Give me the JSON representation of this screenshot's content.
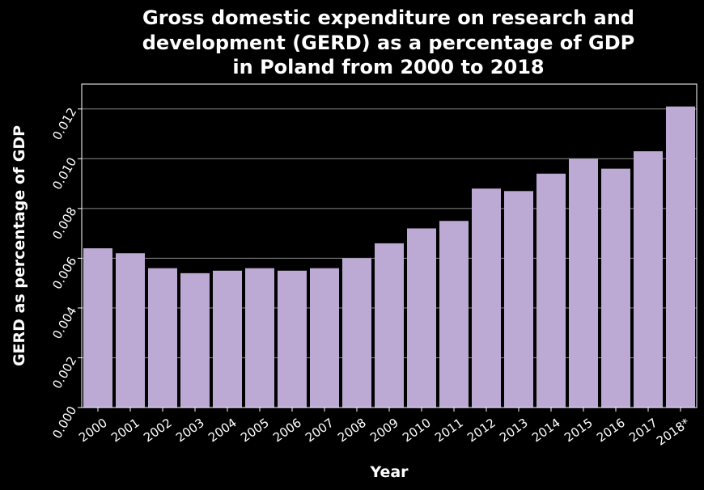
{
  "chart_data": {
    "type": "bar",
    "title_lines": [
      "Gross domestic expenditure on research and",
      "development (GERD) as a percentage of GDP",
      "in Poland from 2000 to 2018"
    ],
    "xlabel": "Year",
    "ylabel": "GERD as percentage of GDP",
    "categories": [
      "2000",
      "2001",
      "2002",
      "2003",
      "2004",
      "2005",
      "2006",
      "2007",
      "2008",
      "2009",
      "2010",
      "2011",
      "2012",
      "2013",
      "2014",
      "2015",
      "2016",
      "2017",
      "2018*"
    ],
    "values": [
      0.0064,
      0.0062,
      0.0056,
      0.0054,
      0.0055,
      0.0056,
      0.0055,
      0.0056,
      0.006,
      0.0066,
      0.0072,
      0.0075,
      0.0088,
      0.0087,
      0.0094,
      0.01,
      0.0096,
      0.0103,
      0.0121
    ],
    "ylim": [
      0,
      0.013
    ],
    "y_ticks": [
      "0.000",
      "0.002",
      "0.004",
      "0.006",
      "0.008",
      "0.010",
      "0.012"
    ],
    "grid": true,
    "bar_color": "#bcaad4",
    "background_color": "#000000",
    "text_color": "#ffffff"
  }
}
